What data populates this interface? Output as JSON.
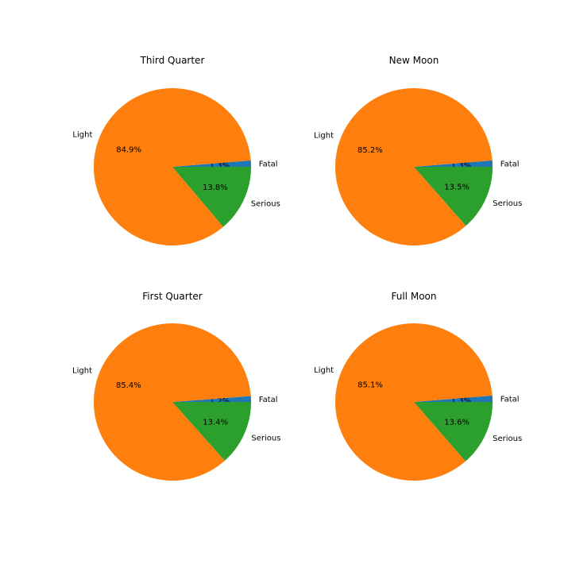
{
  "chart_data": [
    {
      "type": "pie",
      "title": "Third Quarter",
      "slices": [
        {
          "label": "Fatal",
          "value": 1.3,
          "pct_label": "1.3%",
          "color": "#1f77b4"
        },
        {
          "label": "Light",
          "value": 84.9,
          "pct_label": "84.9%",
          "color": "#ff7f0e"
        },
        {
          "label": "Serious",
          "value": 13.8,
          "pct_label": "13.8%",
          "color": "#2ca02c"
        }
      ]
    },
    {
      "type": "pie",
      "title": "New Moon",
      "slices": [
        {
          "label": "Fatal",
          "value": 1.3,
          "pct_label": "1.3%",
          "color": "#1f77b4"
        },
        {
          "label": "Light",
          "value": 85.2,
          "pct_label": "85.2%",
          "color": "#ff7f0e"
        },
        {
          "label": "Serious",
          "value": 13.5,
          "pct_label": "13.5%",
          "color": "#2ca02c"
        }
      ]
    },
    {
      "type": "pie",
      "title": "First Quarter",
      "slices": [
        {
          "label": "Fatal",
          "value": 1.2,
          "pct_label": "1.2%",
          "color": "#1f77b4"
        },
        {
          "label": "Light",
          "value": 85.4,
          "pct_label": "85.4%",
          "color": "#ff7f0e"
        },
        {
          "label": "Serious",
          "value": 13.4,
          "pct_label": "13.4%",
          "color": "#2ca02c"
        }
      ]
    },
    {
      "type": "pie",
      "title": "Full Moon",
      "slices": [
        {
          "label": "Fatal",
          "value": 1.3,
          "pct_label": "1.3%",
          "color": "#1f77b4"
        },
        {
          "label": "Light",
          "value": 85.1,
          "pct_label": "85.1%",
          "color": "#ff7f0e"
        },
        {
          "label": "Serious",
          "value": 13.6,
          "pct_label": "13.6%",
          "color": "#2ca02c"
        }
      ]
    }
  ]
}
